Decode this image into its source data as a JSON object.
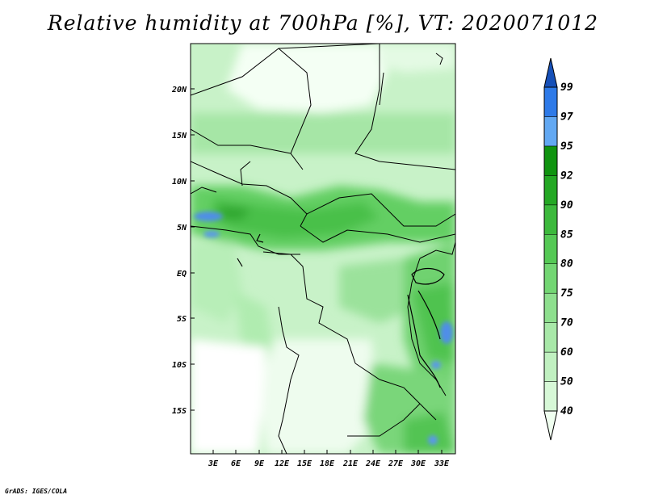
{
  "title": "Relative humidity at 700hPa [%], VT: 2020071012",
  "credit": "GrADS: IGES/COLA",
  "map": {
    "lat_labels": [
      "20N",
      "15N",
      "10N",
      "5N",
      "EQ",
      "5S",
      "10S",
      "15S"
    ],
    "lon_labels": [
      "3E",
      "6E",
      "9E",
      "12E",
      "15E",
      "18E",
      "21E",
      "24E",
      "27E",
      "30E",
      "33E"
    ]
  },
  "colorbar": {
    "levels": [
      "40",
      "50",
      "60",
      "70",
      "75",
      "80",
      "85",
      "90",
      "92",
      "95",
      "97",
      "99"
    ],
    "colors": [
      "#f0fff0",
      "#d7f8d7",
      "#c0f0c0",
      "#a8e8a8",
      "#8edf8e",
      "#73d673",
      "#55c955",
      "#3cb93c",
      "#24a824",
      "#109410",
      "#62a8f2",
      "#2e7ae8",
      "#1650b8"
    ]
  }
}
